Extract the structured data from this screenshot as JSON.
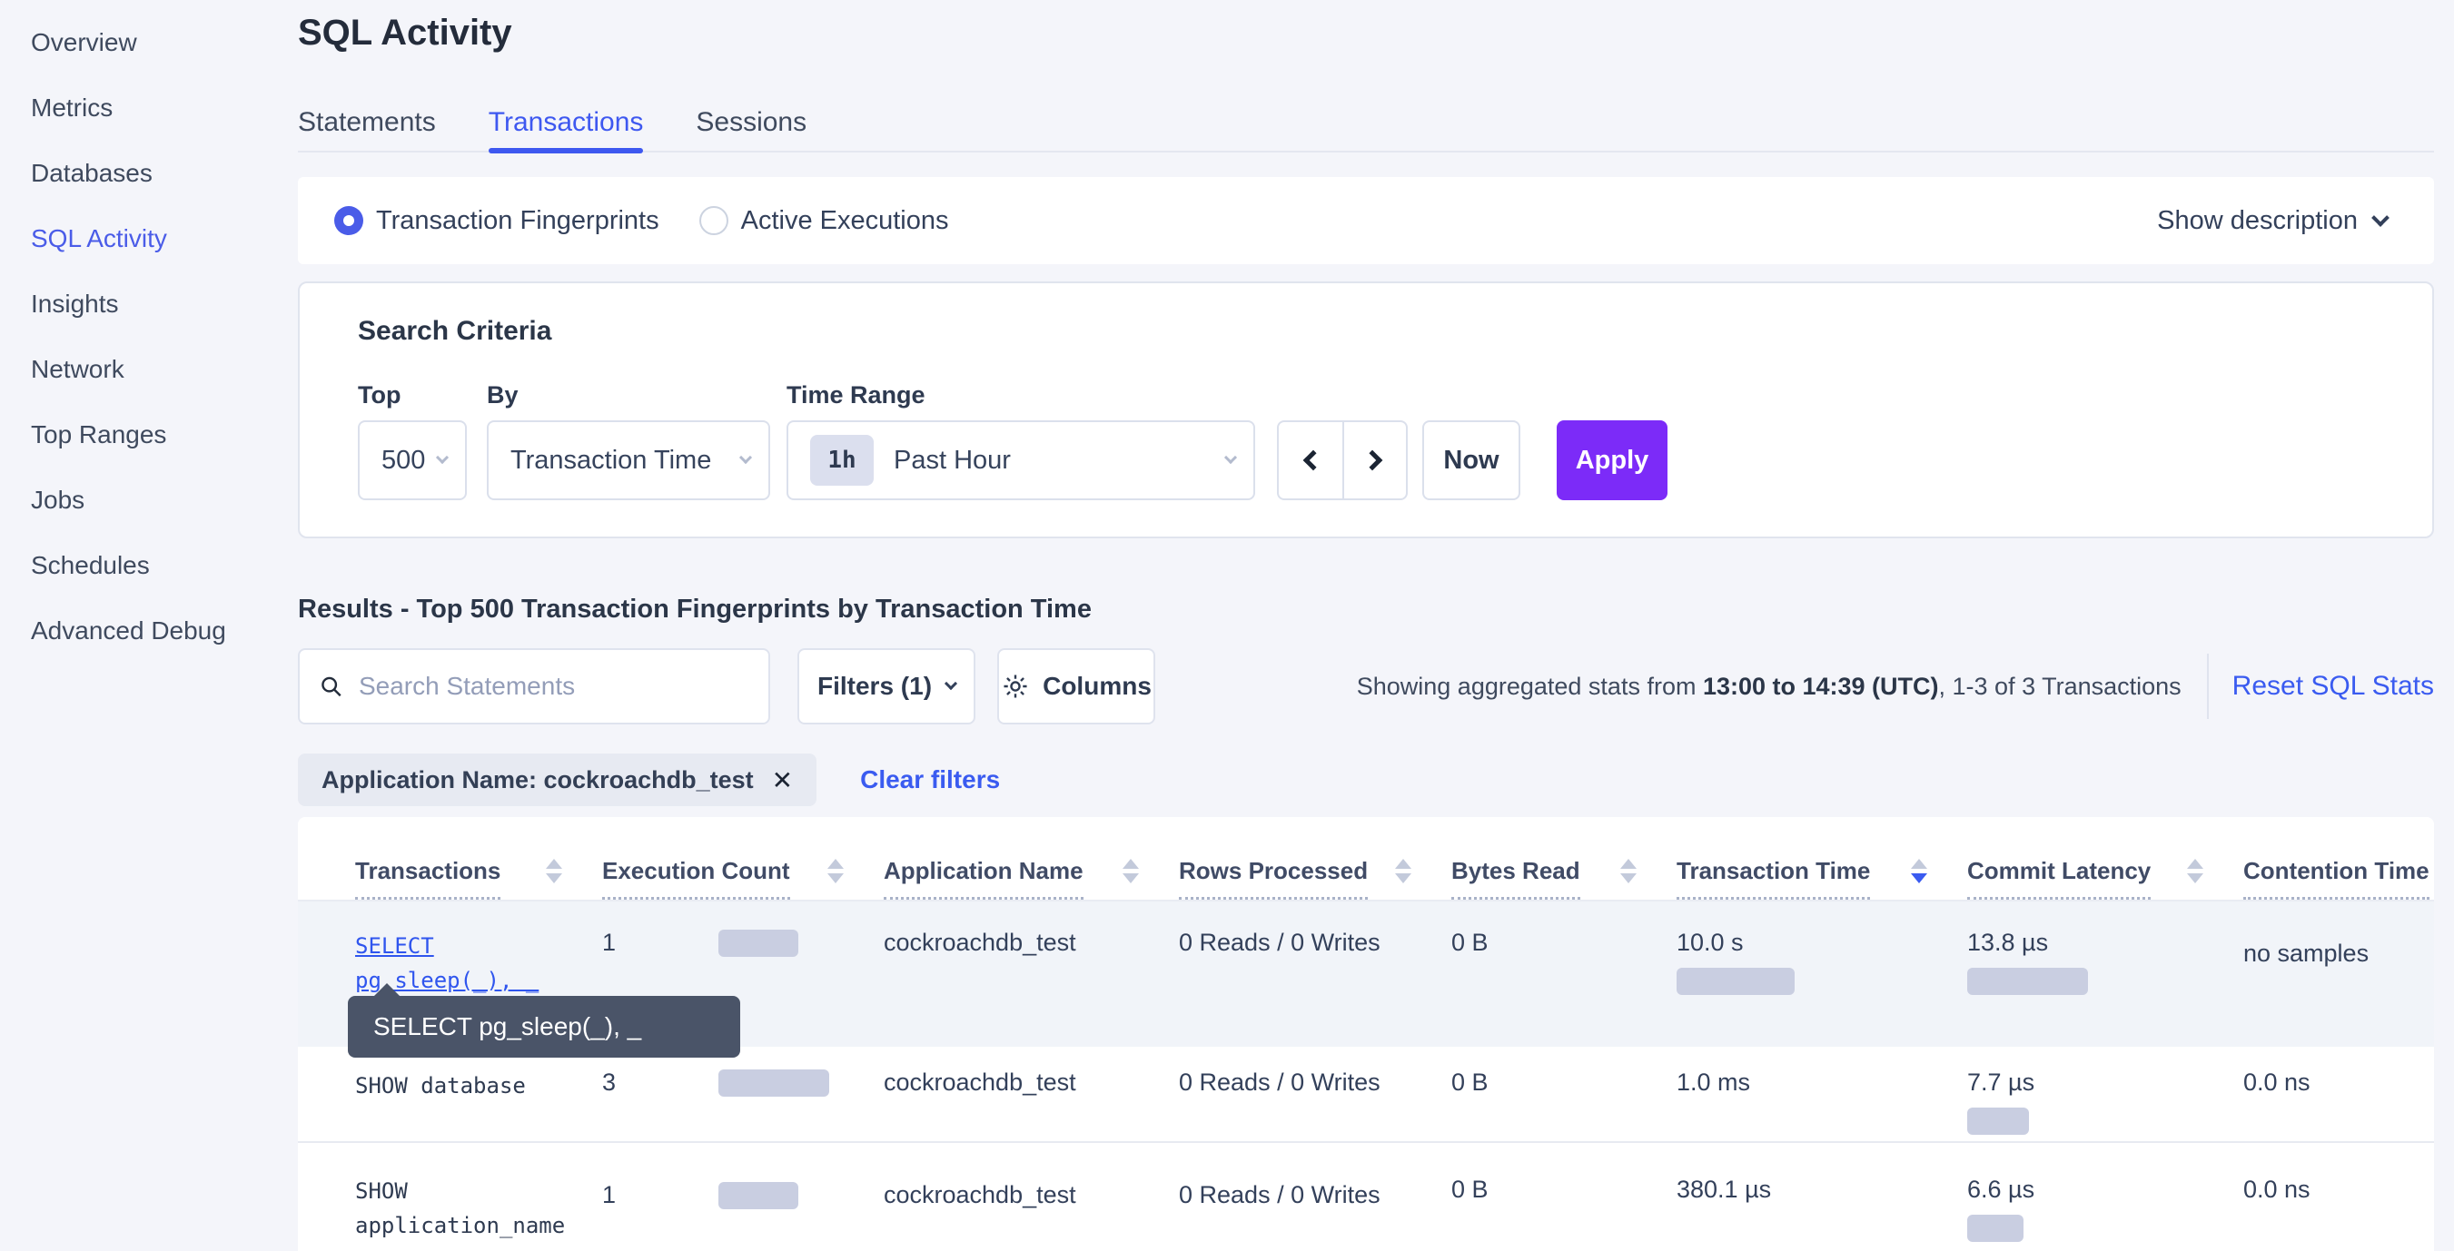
{
  "sidebar": {
    "items": [
      {
        "label": "Overview"
      },
      {
        "label": "Metrics"
      },
      {
        "label": "Databases"
      },
      {
        "label": "SQL Activity"
      },
      {
        "label": "Insights"
      },
      {
        "label": "Network"
      },
      {
        "label": "Top Ranges"
      },
      {
        "label": "Jobs"
      },
      {
        "label": "Schedules"
      },
      {
        "label": "Advanced Debug"
      }
    ],
    "active_item": "SQL Activity"
  },
  "header": {
    "title": "SQL Activity",
    "tabs": [
      {
        "label": "Statements"
      },
      {
        "label": "Transactions"
      },
      {
        "label": "Sessions"
      }
    ],
    "active_tab": "Transactions"
  },
  "view_toggle": {
    "fingerprints_label": "Transaction Fingerprints",
    "active_executions_label": "Active Executions",
    "selected": "Transaction Fingerprints",
    "show_description_label": "Show description"
  },
  "search_criteria": {
    "title": "Search Criteria",
    "top_label": "Top",
    "top_value": "500",
    "by_label": "By",
    "by_value": "Transaction Time",
    "time_range_label": "Time Range",
    "time_range_badge": "1h",
    "time_range_value": "Past Hour",
    "now_label": "Now",
    "apply_label": "Apply"
  },
  "results": {
    "heading": "Results - Top 500 Transaction Fingerprints by Transaction Time",
    "search_placeholder": "Search Statements",
    "filters_label": "Filters (1)",
    "columns_label": "Columns",
    "stats_prefix": "Showing aggregated stats from ",
    "stats_range": "13:00 to 14:39 (UTC)",
    "stats_suffix": ", 1-3 of 3 Transactions",
    "reset_label": "Reset SQL Stats",
    "filter_chip": "Application Name: cockroachdb_test",
    "clear_filters_label": "Clear filters"
  },
  "table": {
    "columns": [
      {
        "label": "Transactions",
        "sortable": true
      },
      {
        "label": "Execution Count",
        "sortable": true
      },
      {
        "label": "Application Name",
        "sortable": true
      },
      {
        "label": "Rows Processed",
        "sortable": true
      },
      {
        "label": "Bytes Read",
        "sortable": true
      },
      {
        "label": "Transaction Time",
        "sortable": true
      },
      {
        "label": "Commit Latency",
        "sortable": true
      },
      {
        "label": "Contention Time",
        "sortable": false
      }
    ],
    "sorted_column": "Transaction Time",
    "sort_direction": "desc",
    "rows": [
      {
        "fingerprint_line1": "SELECT",
        "fingerprint_line2": "pg_sleep(_), _",
        "is_link": true,
        "execution_count": "1",
        "execution_count_bar": 88,
        "application_name": "cockroachdb_test",
        "rows_processed": "0 Reads / 0 Writes",
        "bytes_read": "0 B",
        "transaction_time": "10.0 s",
        "transaction_time_bar": 130,
        "commit_latency": "13.8 µs",
        "commit_latency_bar": 133,
        "contention_time": "no samples"
      },
      {
        "fingerprint_line1": "SHOW database",
        "is_link": false,
        "execution_count": "3",
        "execution_count_bar": 122,
        "application_name": "cockroachdb_test",
        "rows_processed": "0 Reads / 0 Writes",
        "bytes_read": "0 B",
        "transaction_time": "1.0 ms",
        "transaction_time_bar": 0,
        "commit_latency": "7.7 µs",
        "commit_latency_bar": 68,
        "contention_time": "0.0 ns"
      },
      {
        "fingerprint_line1": "SHOW",
        "fingerprint_line2": "application_name",
        "is_link": false,
        "execution_count": "1",
        "execution_count_bar": 88,
        "application_name": "cockroachdb_test",
        "rows_processed": "0 Reads / 0 Writes",
        "bytes_read": "0 B",
        "transaction_time": "380.1 µs",
        "transaction_time_bar": 0,
        "commit_latency": "6.6 µs",
        "commit_latency_bar": 62,
        "contention_time": "0.0 ns"
      }
    ]
  },
  "tooltip": {
    "text": "SELECT pg_sleep(_), _"
  },
  "colors": {
    "accent_blue": "#4a5ce8",
    "link_blue": "#3a5bf0",
    "apply_purple": "#7c2bf8",
    "bar_fill": "#c9cee1",
    "tooltip_bg": "#4a5468",
    "row_highlight": "#f1f4f9",
    "page_bg": "#f4f5fa"
  }
}
